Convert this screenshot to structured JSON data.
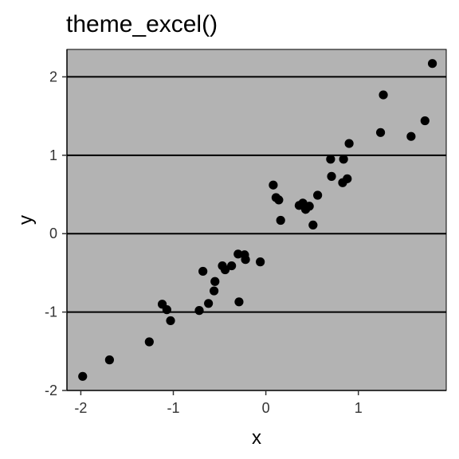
{
  "chart_data": {
    "type": "scatter",
    "title": "theme_excel()",
    "xlabel": "x",
    "ylabel": "y",
    "xlim": [
      -2.15,
      1.95
    ],
    "ylim": [
      -2.0,
      2.35
    ],
    "xticks": [
      -2,
      -1,
      0,
      1
    ],
    "yticks": [
      -2,
      -1,
      0,
      1,
      2
    ],
    "xtick_labels": [
      "-2",
      "-1",
      "0",
      "1"
    ],
    "ytick_labels": [
      "-2",
      "-1",
      "0",
      "1",
      "2"
    ],
    "grid": {
      "major_y": true,
      "major_x": false
    },
    "colors": {
      "panel_background": "#b3b3b3",
      "grid_line": "#000000",
      "point": "#000000",
      "axis_line": "#000000"
    },
    "points": [
      {
        "x": -1.98,
        "y": -1.82
      },
      {
        "x": -1.69,
        "y": -1.61
      },
      {
        "x": -1.26,
        "y": -1.38
      },
      {
        "x": -1.12,
        "y": -0.9
      },
      {
        "x": -1.07,
        "y": -0.97
      },
      {
        "x": -1.03,
        "y": -1.11
      },
      {
        "x": -0.72,
        "y": -0.98
      },
      {
        "x": -0.68,
        "y": -0.48
      },
      {
        "x": -0.62,
        "y": -0.89
      },
      {
        "x": -0.56,
        "y": -0.73
      },
      {
        "x": -0.55,
        "y": -0.61
      },
      {
        "x": -0.47,
        "y": -0.41
      },
      {
        "x": -0.44,
        "y": -0.46
      },
      {
        "x": -0.37,
        "y": -0.41
      },
      {
        "x": -0.3,
        "y": -0.26
      },
      {
        "x": -0.29,
        "y": -0.87
      },
      {
        "x": -0.23,
        "y": -0.27
      },
      {
        "x": -0.22,
        "y": -0.33
      },
      {
        "x": -0.06,
        "y": -0.36
      },
      {
        "x": 0.08,
        "y": 0.62
      },
      {
        "x": 0.11,
        "y": 0.46
      },
      {
        "x": 0.14,
        "y": 0.43
      },
      {
        "x": 0.16,
        "y": 0.17
      },
      {
        "x": 0.36,
        "y": 0.36
      },
      {
        "x": 0.4,
        "y": 0.39
      },
      {
        "x": 0.43,
        "y": 0.31
      },
      {
        "x": 0.47,
        "y": 0.35
      },
      {
        "x": 0.51,
        "y": 0.11
      },
      {
        "x": 0.56,
        "y": 0.49
      },
      {
        "x": 0.7,
        "y": 0.95
      },
      {
        "x": 0.71,
        "y": 0.73
      },
      {
        "x": 0.83,
        "y": 0.65
      },
      {
        "x": 0.84,
        "y": 0.95
      },
      {
        "x": 0.88,
        "y": 0.7
      },
      {
        "x": 0.9,
        "y": 1.15
      },
      {
        "x": 1.24,
        "y": 1.29
      },
      {
        "x": 1.27,
        "y": 1.77
      },
      {
        "x": 1.57,
        "y": 1.24
      },
      {
        "x": 1.72,
        "y": 1.44
      },
      {
        "x": 1.8,
        "y": 2.17
      }
    ]
  }
}
